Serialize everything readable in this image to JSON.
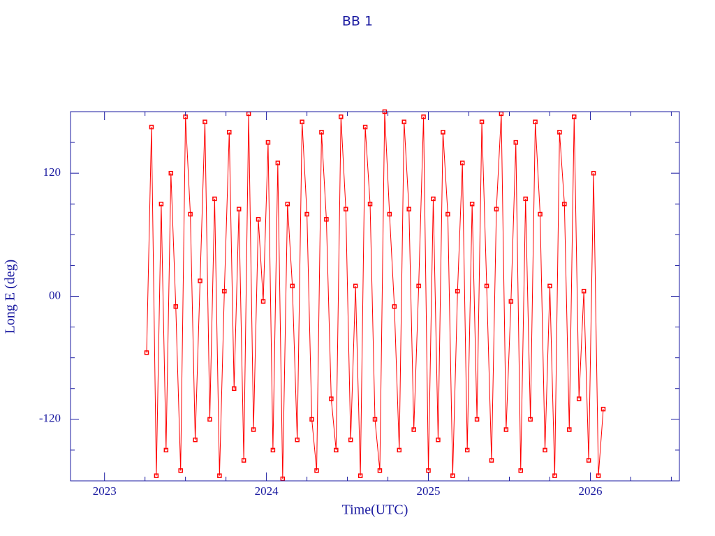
{
  "chart_data": {
    "type": "line",
    "title": "BB 1",
    "x_label": "Time(UTC)",
    "y_label": "Long E (deg)",
    "x": [
      2023.26,
      2023.29,
      2023.32,
      2023.35,
      2023.38,
      2023.41,
      2023.44,
      2023.47,
      2023.5,
      2023.53,
      2023.56,
      2023.59,
      2023.62,
      2023.65,
      2023.68,
      2023.71,
      2023.74,
      2023.77,
      2023.8,
      2023.83,
      2023.86,
      2023.89,
      2023.92,
      2023.95,
      2023.98,
      2024.01,
      2024.04,
      2024.07,
      2024.1,
      2024.13,
      2024.16,
      2024.19,
      2024.22,
      2024.25,
      2024.28,
      2024.31,
      2024.34,
      2024.37,
      2024.4,
      2024.43,
      2024.46,
      2024.49,
      2024.52,
      2024.55,
      2024.58,
      2024.61,
      2024.64,
      2024.67,
      2024.7,
      2024.73,
      2024.76,
      2024.79,
      2024.82,
      2024.85,
      2024.88,
      2024.91,
      2024.94,
      2024.97,
      2025.0,
      2025.03,
      2025.06,
      2025.09,
      2025.12,
      2025.15,
      2025.18,
      2025.21,
      2025.24,
      2025.27,
      2025.3,
      2025.33,
      2025.36,
      2025.39,
      2025.42,
      2025.45,
      2025.48,
      2025.51,
      2025.54,
      2025.57,
      2025.6,
      2025.63,
      2025.66,
      2025.69,
      2025.72,
      2025.75,
      2025.78,
      2025.81,
      2025.84,
      2025.87,
      2025.9,
      2025.93,
      2025.96,
      2025.99,
      2026.02,
      2026.05,
      2026.08
    ],
    "series": [
      {
        "color": "#ff0000",
        "values": [
          -55,
          165,
          -175,
          90,
          -150,
          120,
          -10,
          -170,
          175,
          80,
          -140,
          15,
          170,
          -120,
          95,
          -175,
          5,
          160,
          -90,
          85,
          -160,
          178,
          -130,
          75,
          -5,
          150,
          -150,
          130,
          -178,
          90,
          10,
          -140,
          170,
          80,
          -120,
          -170,
          160,
          75,
          -100,
          -150,
          175,
          85,
          -140,
          10,
          -175,
          165,
          90,
          -120,
          -170,
          180,
          80,
          -10,
          -150,
          170,
          85,
          -130,
          10,
          175,
          -170,
          95,
          -140,
          160,
          80,
          -175,
          5,
          130,
          -150,
          90,
          -120,
          170,
          10,
          -160,
          85,
          178,
          -130,
          -5,
          150,
          -170,
          95,
          -120,
          170,
          80,
          -150,
          10,
          -175,
          160,
          90,
          -130,
          175,
          -100,
          5,
          -160,
          120,
          -175,
          -110
        ]
      }
    ],
    "xlim": [
      2022.79,
      2026.55
    ],
    "xticks": [
      2023,
      2024,
      2025,
      2026
    ],
    "x_minor_ticks": [
      2023.25,
      2023.5,
      2023.75,
      2024.25,
      2024.5,
      2024.75,
      2025.25,
      2025.5,
      2025.75,
      2026.25,
      2026.5
    ],
    "ylim": [
      -180,
      180
    ],
    "yticks": [
      -120,
      {
        "value": 0,
        "label": "00"
      },
      120
    ],
    "y_minor_ticks": [
      -150,
      -90,
      -60,
      -30,
      30,
      60,
      90,
      150
    ],
    "axis_color": "#1a1aa0"
  }
}
